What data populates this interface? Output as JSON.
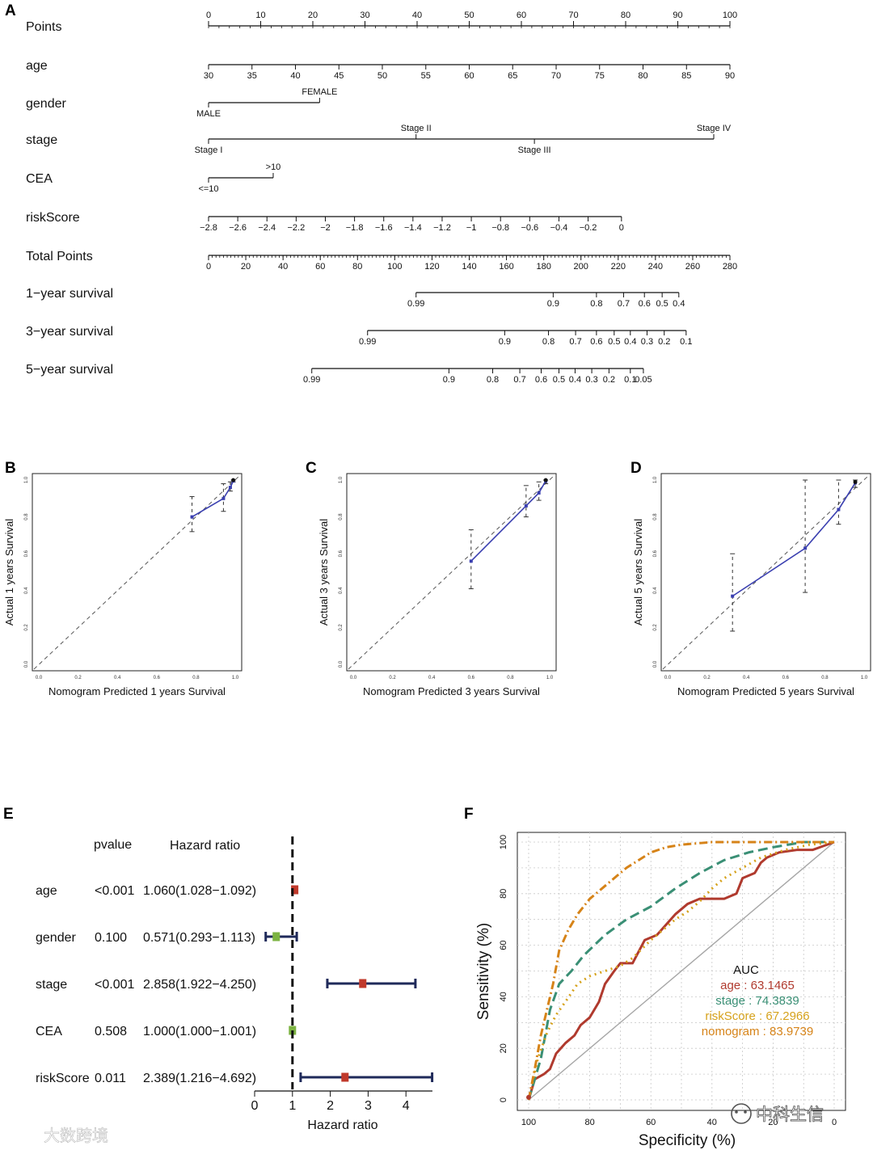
{
  "panels": {
    "A": "A",
    "B": "B",
    "C": "C",
    "D": "D",
    "E": "E",
    "F": "F"
  },
  "chart_data": [
    {
      "id": "A",
      "type": "nomogram",
      "rows": [
        {
          "label": "Points",
          "ticks": [
            {
              "v": 0,
              "t": "0"
            },
            {
              "v": 10,
              "t": "10"
            },
            {
              "v": 20,
              "t": "20"
            },
            {
              "v": 30,
              "t": "30"
            },
            {
              "v": 40,
              "t": "40"
            },
            {
              "v": 50,
              "t": "50"
            },
            {
              "v": 60,
              "t": "60"
            },
            {
              "v": 70,
              "t": "70"
            },
            {
              "v": 80,
              "t": "80"
            },
            {
              "v": 90,
              "t": "90"
            },
            {
              "v": 100,
              "t": "100"
            }
          ],
          "minor": true,
          "labelPos": "above"
        },
        {
          "label": "age",
          "ticks": [
            {
              "v": 0,
              "t": "30"
            },
            {
              "v": 8.33,
              "t": "35"
            },
            {
              "v": 16.67,
              "t": "40"
            },
            {
              "v": 25,
              "t": "45"
            },
            {
              "v": 33.33,
              "t": "50"
            },
            {
              "v": 41.67,
              "t": "55"
            },
            {
              "v": 50,
              "t": "60"
            },
            {
              "v": 58.33,
              "t": "65"
            },
            {
              "v": 66.67,
              "t": "70"
            },
            {
              "v": 75,
              "t": "75"
            },
            {
              "v": 83.33,
              "t": "80"
            },
            {
              "v": 91.67,
              "t": "85"
            },
            {
              "v": 100,
              "t": "90"
            }
          ]
        },
        {
          "label": "gender",
          "ticks": [
            {
              "v": 0,
              "t": "MALE",
              "pos": "below"
            },
            {
              "v": 21.3,
              "t": "FEMALE",
              "pos": "above"
            }
          ]
        },
        {
          "label": "stage",
          "ticks": [
            {
              "v": 0,
              "t": "Stage I",
              "pos": "below"
            },
            {
              "v": 39.8,
              "t": "Stage II",
              "pos": "above"
            },
            {
              "v": 62.5,
              "t": "Stage III",
              "pos": "below"
            },
            {
              "v": 96.9,
              "t": "Stage IV",
              "pos": "above"
            }
          ]
        },
        {
          "label": "CEA",
          "ticks": [
            {
              "v": 0,
              "t": "<=10",
              "pos": "below"
            },
            {
              "v": 12.4,
              "t": ">10",
              "pos": "above"
            }
          ]
        },
        {
          "label": "riskScore",
          "ticks": [
            {
              "v": 0,
              "t": "−2.8"
            },
            {
              "v": 5.6,
              "t": "−2.6"
            },
            {
              "v": 11.2,
              "t": "−2.4"
            },
            {
              "v": 16.8,
              "t": "−2.2"
            },
            {
              "v": 22.4,
              "t": "−2"
            },
            {
              "v": 28,
              "t": "−1.8"
            },
            {
              "v": 33.6,
              "t": "−1.6"
            },
            {
              "v": 39.2,
              "t": "−1.4"
            },
            {
              "v": 44.8,
              "t": "−1.2"
            },
            {
              "v": 50.4,
              "t": "−1"
            },
            {
              "v": 56,
              "t": "−0.8"
            },
            {
              "v": 61.6,
              "t": "−0.6"
            },
            {
              "v": 67.2,
              "t": "−0.4"
            },
            {
              "v": 72.8,
              "t": "−0.2"
            },
            {
              "v": 79.2,
              "t": "0"
            }
          ]
        },
        {
          "label": "Total Points",
          "ticks": [
            {
              "v": 0,
              "t": "0"
            },
            {
              "v": 7.14,
              "t": "20"
            },
            {
              "v": 14.29,
              "t": "40"
            },
            {
              "v": 21.43,
              "t": "60"
            },
            {
              "v": 28.57,
              "t": "80"
            },
            {
              "v": 35.71,
              "t": "100"
            },
            {
              "v": 42.86,
              "t": "120"
            },
            {
              "v": 50,
              "t": "140"
            },
            {
              "v": 57.14,
              "t": "160"
            },
            {
              "v": 64.29,
              "t": "180"
            },
            {
              "v": 71.43,
              "t": "200"
            },
            {
              "v": 78.57,
              "t": "220"
            },
            {
              "v": 85.71,
              "t": "240"
            },
            {
              "v": 92.86,
              "t": "260"
            },
            {
              "v": 100,
              "t": "280"
            }
          ],
          "minor": true
        },
        {
          "label": "1−year survival",
          "ticks": [
            {
              "v": 39.8,
              "t": "0.99"
            },
            {
              "v": 66.1,
              "t": "0.9"
            },
            {
              "v": 74.4,
              "t": "0.8"
            },
            {
              "v": 79.6,
              "t": "0.7"
            },
            {
              "v": 83.6,
              "t": "0.6"
            },
            {
              "v": 87,
              "t": "0.5"
            },
            {
              "v": 90.2,
              "t": "0.4"
            }
          ]
        },
        {
          "label": "3−year survival",
          "ticks": [
            {
              "v": 30.5,
              "t": "0.99"
            },
            {
              "v": 56.8,
              "t": "0.9"
            },
            {
              "v": 65.2,
              "t": "0.8"
            },
            {
              "v": 70.4,
              "t": "0.7"
            },
            {
              "v": 74.4,
              "t": "0.6"
            },
            {
              "v": 77.8,
              "t": "0.5"
            },
            {
              "v": 80.9,
              "t": "0.4"
            },
            {
              "v": 84.1,
              "t": "0.3"
            },
            {
              "v": 87.4,
              "t": "0.2"
            },
            {
              "v": 91.6,
              "t": "0.1"
            }
          ]
        },
        {
          "label": "5−year survival",
          "ticks": [
            {
              "v": 19.8,
              "t": "0.99"
            },
            {
              "v": 46.1,
              "t": "0.9"
            },
            {
              "v": 54.5,
              "t": "0.8"
            },
            {
              "v": 59.7,
              "t": "0.7"
            },
            {
              "v": 63.8,
              "t": "0.6"
            },
            {
              "v": 67.2,
              "t": "0.5"
            },
            {
              "v": 70.3,
              "t": "0.4"
            },
            {
              "v": 73.5,
              "t": "0.3"
            },
            {
              "v": 76.8,
              "t": "0.2"
            },
            {
              "v": 80.9,
              "t": "0.1"
            },
            {
              "v": 83.4,
              "t": "0.05"
            }
          ]
        }
      ]
    },
    {
      "id": "B",
      "type": "calibration",
      "xlabel": "Nomogram Predicted 1 years Survival",
      "ylabel": "Actual 1 years Survival",
      "ticks": [
        "0.0",
        "0.2",
        "0.4",
        "0.6",
        "0.8",
        "1.0"
      ],
      "line": [
        [
          0.78,
          0.8
        ],
        [
          0.94,
          0.9
        ],
        [
          0.975,
          0.96
        ],
        [
          0.99,
          0.995
        ]
      ],
      "errors": [
        [
          0.78,
          0.72,
          0.91
        ],
        [
          0.94,
          0.83,
          0.98
        ],
        [
          0.975,
          0.94,
          0.99
        ],
        [
          0.99,
          0.99,
          1.0
        ]
      ]
    },
    {
      "id": "C",
      "type": "calibration",
      "xlabel": "Nomogram Predicted 3 years Survival",
      "ylabel": "Actual 3 years Survival",
      "ticks": [
        "0.0",
        "0.2",
        "0.4",
        "0.6",
        "0.8",
        "1.0"
      ],
      "line": [
        [
          0.6,
          0.56
        ],
        [
          0.88,
          0.86
        ],
        [
          0.945,
          0.93
        ],
        [
          0.98,
          0.995
        ]
      ],
      "errors": [
        [
          0.6,
          0.41,
          0.73
        ],
        [
          0.88,
          0.8,
          0.97
        ],
        [
          0.945,
          0.89,
          0.99
        ],
        [
          0.98,
          0.98,
          1.0
        ]
      ]
    },
    {
      "id": "D",
      "type": "calibration",
      "xlabel": "Nomogram Predicted 5 years Survival",
      "ylabel": "Actual 5 years Survival",
      "ticks": [
        "0.0",
        "0.2",
        "0.4",
        "0.6",
        "0.8",
        "1.0"
      ],
      "line": [
        [
          0.33,
          0.37
        ],
        [
          0.7,
          0.63
        ],
        [
          0.87,
          0.84
        ],
        [
          0.955,
          0.985
        ]
      ],
      "errors": [
        [
          0.33,
          0.18,
          0.6
        ],
        [
          0.7,
          0.39,
          1.0
        ],
        [
          0.87,
          0.76,
          1.0
        ],
        [
          0.955,
          0.96,
          1.0
        ]
      ]
    },
    {
      "id": "E",
      "type": "forest",
      "headers": {
        "pvalue": "pvalue",
        "hr": "Hazard ratio"
      },
      "xlabel": "Hazard ratio",
      "xticks": [
        0,
        1,
        2,
        3,
        4
      ],
      "xlim": [
        0,
        4.7
      ],
      "rows": [
        {
          "label": "age",
          "p": "<0.001",
          "hr": "1.060(1.028−1.092)",
          "est": 1.06,
          "lo": 1.028,
          "hi": 1.092,
          "color": "#c0392b"
        },
        {
          "label": "gender",
          "p": "0.100",
          "hr": "0.571(0.293−1.113)",
          "est": 0.571,
          "lo": 0.293,
          "hi": 1.113,
          "color": "#7cb342"
        },
        {
          "label": "stage",
          "p": "<0.001",
          "hr": "2.858(1.922−4.250)",
          "est": 2.858,
          "lo": 1.922,
          "hi": 4.25,
          "color": "#c0392b"
        },
        {
          "label": "CEA",
          "p": "0.508",
          "hr": "1.000(1.000−1.001)",
          "est": 1.0,
          "lo": 1.0,
          "hi": 1.001,
          "color": "#7cb342"
        },
        {
          "label": "riskScore",
          "p": "0.011",
          "hr": "2.389(1.216−4.692)",
          "est": 2.389,
          "lo": 1.216,
          "hi": 4.692,
          "color": "#c0392b"
        }
      ]
    },
    {
      "id": "F",
      "type": "roc",
      "xlabel": "Specificity (%)",
      "ylabel": "Sensitivity (%)",
      "xticks": [
        "100",
        "80",
        "60",
        "40",
        "20",
        "0"
      ],
      "yticks": [
        "0",
        "20",
        "40",
        "60",
        "80",
        "100"
      ],
      "legend_title": "AUC",
      "series": [
        {
          "name": "age",
          "auc": "63.1465",
          "color": "#b03a2e",
          "dash": "",
          "pts": [
            [
              100,
              0
            ],
            [
              98,
              8
            ],
            [
              95,
              10
            ],
            [
              93,
              12
            ],
            [
              91,
              18
            ],
            [
              88,
              22
            ],
            [
              85,
              25
            ],
            [
              83,
              29
            ],
            [
              80,
              32
            ],
            [
              77,
              38
            ],
            [
              75,
              45
            ],
            [
              72,
              50
            ],
            [
              70,
              53
            ],
            [
              66,
              53
            ],
            [
              62,
              62
            ],
            [
              58,
              64
            ],
            [
              55,
              68
            ],
            [
              52,
              72
            ],
            [
              48,
              76
            ],
            [
              44,
              78
            ],
            [
              40,
              78
            ],
            [
              36,
              78
            ],
            [
              32,
              80
            ],
            [
              30,
              86
            ],
            [
              26,
              88
            ],
            [
              24,
              92
            ],
            [
              22,
              94
            ],
            [
              18,
              96
            ],
            [
              12,
              97
            ],
            [
              7,
              97
            ],
            [
              0,
              100
            ]
          ]
        },
        {
          "name": "stage",
          "auc": "74.3839",
          "color": "#3a8f75",
          "dash": "12,6",
          "pts": [
            [
              100,
              0
            ],
            [
              96,
              16
            ],
            [
              93,
              35
            ],
            [
              90,
              45
            ],
            [
              86,
              50
            ],
            [
              82,
              56
            ],
            [
              75,
              64
            ],
            [
              68,
              70
            ],
            [
              60,
              75
            ],
            [
              52,
              82
            ],
            [
              44,
              88
            ],
            [
              36,
              93
            ],
            [
              28,
              96
            ],
            [
              20,
              98
            ],
            [
              10,
              100
            ],
            [
              0,
              100
            ]
          ]
        },
        {
          "name": "riskScore",
          "auc": "67.2966",
          "color": "#d6a21c",
          "dash": "2,5",
          "pts": [
            [
              100,
              0
            ],
            [
              97,
              16
            ],
            [
              94,
              26
            ],
            [
              91,
              33
            ],
            [
              88,
              38
            ],
            [
              84,
              45
            ],
            [
              80,
              48
            ],
            [
              75,
              50
            ],
            [
              70,
              52
            ],
            [
              66,
              55
            ],
            [
              60,
              62
            ],
            [
              55,
              67
            ],
            [
              52,
              70
            ],
            [
              48,
              73
            ],
            [
              44,
              77
            ],
            [
              40,
              82
            ],
            [
              36,
              86
            ],
            [
              30,
              90
            ],
            [
              24,
              94
            ],
            [
              16,
              97
            ],
            [
              8,
              99
            ],
            [
              0,
              100
            ]
          ]
        },
        {
          "name": "nomogram",
          "auc": "83.9739",
          "color": "#d68318",
          "dash": "10,4,2,4",
          "pts": [
            [
              100,
              0
            ],
            [
              98,
              12
            ],
            [
              96,
              25
            ],
            [
              94,
              35
            ],
            [
              92,
              45
            ],
            [
              90,
              58
            ],
            [
              87,
              66
            ],
            [
              84,
              72
            ],
            [
              80,
              78
            ],
            [
              76,
              82
            ],
            [
              72,
              86
            ],
            [
              68,
              90
            ],
            [
              64,
              93
            ],
            [
              60,
              96
            ],
            [
              55,
              98
            ],
            [
              50,
              99
            ],
            [
              40,
              100
            ],
            [
              0,
              100
            ]
          ]
        }
      ]
    }
  ],
  "watermarks": {
    "left": "大数跨境",
    "right": "中科生信"
  }
}
